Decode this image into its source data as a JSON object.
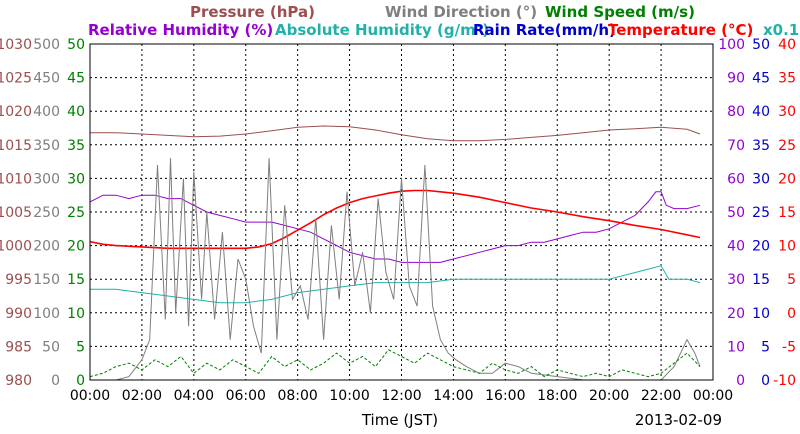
{
  "chart_data": {
    "type": "line",
    "legend": {
      "row1": [
        {
          "key": "pressure",
          "label": "Pressure (hPa)",
          "color": "#9b4f4f"
        },
        {
          "key": "wind_dir",
          "label": "Wind Direction (°)",
          "color": "#7f7f7f"
        },
        {
          "key": "wind_speed",
          "label": "Wind Speed (m/s)",
          "color": "#008000"
        }
      ],
      "row2": [
        {
          "key": "rh",
          "label": "Relative Humidity (%)",
          "color": "#9400d3"
        },
        {
          "key": "ah",
          "label": "Absolute Humidity (g/m³)",
          "color": "#20b2aa"
        },
        {
          "key": "rain",
          "label": "Rain Rate(mm/h)",
          "color": "#0000cd"
        },
        {
          "key": "temp",
          "label": "Temperature (°C)",
          "color": "#ff0000"
        },
        {
          "key": "scale",
          "label": "x0.1",
          "color": "#20b2aa"
        }
      ]
    },
    "xlabel": "Time (JST)",
    "date_label": "2013-02-09",
    "x_ticks": [
      "00:00",
      "02:00",
      "04:00",
      "06:00",
      "08:00",
      "10:00",
      "12:00",
      "14:00",
      "16:00",
      "18:00",
      "20:00",
      "22:00",
      "00:00"
    ],
    "xlim_hours": [
      0,
      24
    ],
    "grid": true,
    "axes": {
      "pressure": {
        "min": 980,
        "max": 1030,
        "step": 5,
        "color": "#9b4f4f",
        "ticks": [
          "980",
          "985",
          "990",
          "995",
          "1000",
          "1005",
          "1010",
          "1015",
          "1020",
          "1025",
          "1030"
        ]
      },
      "wind_dir": {
        "min": 0,
        "max": 500,
        "step": 50,
        "color": "#7f7f7f",
        "ticks": [
          "0",
          "50",
          "100",
          "150",
          "200",
          "250",
          "300",
          "350",
          "400",
          "450",
          "500"
        ]
      },
      "wind_speed": {
        "min": 0,
        "max": 50,
        "step": 5,
        "color": "#008000",
        "ticks": [
          "0",
          "5",
          "10",
          "15",
          "20",
          "25",
          "30",
          "35",
          "40",
          "45",
          "50"
        ]
      },
      "rh": {
        "min": 0,
        "max": 100,
        "step": 10,
        "color": "#9400d3",
        "ticks": [
          "0",
          "10",
          "20",
          "30",
          "40",
          "50",
          "60",
          "70",
          "80",
          "90",
          "100"
        ]
      },
      "rain": {
        "min": 0,
        "max": 50,
        "step": 5,
        "color": "#0000cd",
        "ticks": [
          "0",
          "5",
          "10",
          "15",
          "20",
          "25",
          "30",
          "35",
          "40",
          "45",
          "50"
        ]
      },
      "temp": {
        "min": -10,
        "max": 40,
        "step": 5,
        "color": "#ff0000",
        "ticks": [
          "-10",
          "-5",
          "0",
          "5",
          "10",
          "15",
          "20",
          "25",
          "30",
          "35",
          "40"
        ]
      }
    },
    "series": [
      {
        "key": "pressure",
        "axis": "pressure",
        "color": "#9b4f4f",
        "x": [
          0,
          1,
          2,
          3,
          4,
          5,
          6,
          7,
          8,
          9,
          10,
          11,
          12,
          13,
          14,
          15,
          16,
          17,
          18,
          19,
          20,
          21,
          22,
          23,
          23.5
        ],
        "y": [
          1016.8,
          1016.8,
          1016.6,
          1016.4,
          1016.2,
          1016.3,
          1016.6,
          1017.1,
          1017.6,
          1017.8,
          1017.7,
          1017.2,
          1016.5,
          1015.9,
          1015.6,
          1015.6,
          1015.8,
          1016.1,
          1016.4,
          1016.8,
          1017.2,
          1017.4,
          1017.6,
          1017.3,
          1016.6
        ]
      },
      {
        "key": "rh",
        "axis": "rh",
        "color": "#9400d3",
        "x": [
          0,
          0.5,
          1,
          1.5,
          2,
          2.5,
          3,
          3.5,
          4,
          4.5,
          5,
          5.5,
          6,
          6.5,
          7,
          7.5,
          8,
          8.5,
          9,
          9.5,
          10,
          10.5,
          11,
          11.5,
          12,
          12.5,
          13,
          13.5,
          14,
          14.5,
          15,
          15.5,
          16,
          16.5,
          17,
          17.5,
          18,
          18.5,
          19,
          19.5,
          20,
          20.5,
          21,
          21.5,
          21.8,
          22,
          22.2,
          22.5,
          23,
          23.5
        ],
        "y": [
          53,
          55,
          55,
          54,
          55,
          55,
          54,
          54,
          52,
          50,
          49,
          48,
          47,
          47,
          47,
          46,
          45,
          44,
          42,
          40,
          38,
          37,
          36,
          36,
          35,
          35,
          35,
          35,
          36,
          37,
          38,
          39,
          40,
          40,
          41,
          41,
          42,
          43,
          44,
          44,
          45,
          47,
          49,
          53,
          56,
          56,
          52,
          51,
          51,
          52
        ]
      },
      {
        "key": "ah",
        "axis": "ah_scaled",
        "color": "#20b2aa",
        "x": [
          0,
          1,
          2,
          3,
          4,
          5,
          6,
          7,
          8,
          9,
          10,
          11,
          12,
          13,
          14,
          15,
          16,
          17,
          18,
          19,
          20,
          20.5,
          21,
          21.5,
          22,
          22.3,
          22.6,
          23,
          23.5
        ],
        "y": [
          27,
          27,
          26,
          25,
          24,
          23,
          23,
          24,
          26,
          27,
          28,
          29,
          29,
          29,
          30,
          30,
          30,
          30,
          30,
          30,
          30,
          31,
          32,
          33,
          34,
          30,
          30,
          30,
          29
        ]
      },
      {
        "key": "temp",
        "axis": "temp",
        "color": "#ff0000",
        "x": [
          0,
          0.5,
          1,
          2,
          3,
          4,
          5,
          6,
          6.5,
          7,
          7.5,
          8,
          8.5,
          9,
          9.5,
          10,
          10.5,
          11,
          11.5,
          12,
          12.5,
          13,
          13.5,
          14,
          15,
          16,
          17,
          18,
          19,
          20,
          21,
          22,
          23,
          23.5
        ],
        "y": [
          10.6,
          10.2,
          10.0,
          9.8,
          9.6,
          9.6,
          9.6,
          9.6,
          9.8,
          10.3,
          11.2,
          12.3,
          13.4,
          14.6,
          15.6,
          16.4,
          17.0,
          17.4,
          17.8,
          18.1,
          18.2,
          18.2,
          18.0,
          17.8,
          17.2,
          16.4,
          15.6,
          15.0,
          14.3,
          13.7,
          13.0,
          12.4,
          11.6,
          11.2
        ]
      },
      {
        "key": "wind_dir",
        "axis": "wind_dir",
        "color": "#7f7f7f",
        "x": [
          0,
          0.5,
          1,
          1.5,
          2,
          2.3,
          2.6,
          2.9,
          3.1,
          3.3,
          3.6,
          3.8,
          4.0,
          4.3,
          4.5,
          4.8,
          5.1,
          5.4,
          5.7,
          6.0,
          6.3,
          6.6,
          6.9,
          7.2,
          7.5,
          7.8,
          8.1,
          8.4,
          8.7,
          9.0,
          9.3,
          9.6,
          9.9,
          10.2,
          10.5,
          10.8,
          11.1,
          11.4,
          11.7,
          12.0,
          12.3,
          12.6,
          12.9,
          13.2,
          13.5,
          13.8,
          14.1,
          14.5,
          15,
          15.5,
          16,
          16.5,
          17,
          18,
          19,
          20,
          21,
          22,
          22.5,
          23,
          23.3,
          23.5
        ],
        "y": [
          0,
          0,
          0,
          5,
          30,
          60,
          320,
          90,
          330,
          100,
          300,
          80,
          310,
          120,
          250,
          90,
          220,
          60,
          180,
          150,
          80,
          40,
          330,
          60,
          260,
          120,
          140,
          90,
          240,
          60,
          230,
          120,
          280,
          140,
          190,
          100,
          270,
          160,
          120,
          300,
          140,
          110,
          320,
          110,
          60,
          40,
          30,
          20,
          10,
          10,
          25,
          20,
          10,
          5,
          0,
          0,
          0,
          0,
          20,
          60,
          40,
          20
        ]
      },
      {
        "key": "wind_speed",
        "axis": "wind_speed",
        "color": "#008000",
        "x": [
          0,
          0.5,
          1,
          1.5,
          2,
          2.5,
          3,
          3.5,
          4,
          4.5,
          5,
          5.5,
          6,
          6.5,
          7,
          7.5,
          8,
          8.5,
          9,
          9.5,
          10,
          10.5,
          11,
          11.5,
          12,
          12.5,
          13,
          13.5,
          14,
          14.5,
          15,
          15.5,
          16,
          16.5,
          17,
          17.5,
          18,
          18.5,
          19,
          19.5,
          20,
          20.5,
          21,
          21.5,
          22,
          22.5,
          23,
          23.5
        ],
        "y": [
          0.5,
          1.0,
          2.0,
          2.5,
          1.5,
          3.0,
          2.0,
          3.5,
          1.0,
          2.5,
          1.5,
          3.0,
          2.0,
          1.0,
          3.5,
          2.0,
          3.0,
          1.5,
          2.5,
          4.0,
          2.5,
          3.5,
          2.0,
          4.5,
          3.5,
          2.5,
          4.0,
          3.0,
          2.0,
          1.5,
          1.0,
          2.5,
          1.5,
          1.0,
          2.0,
          0.5,
          1.5,
          1.0,
          0.5,
          1.0,
          0.5,
          1.5,
          1.0,
          0.5,
          1.0,
          2.5,
          4.0,
          2.0
        ]
      },
      {
        "key": "rain",
        "axis": "rain",
        "color": "#0000cd",
        "x": [
          0,
          24
        ],
        "y": [
          0,
          0
        ]
      }
    ]
  }
}
